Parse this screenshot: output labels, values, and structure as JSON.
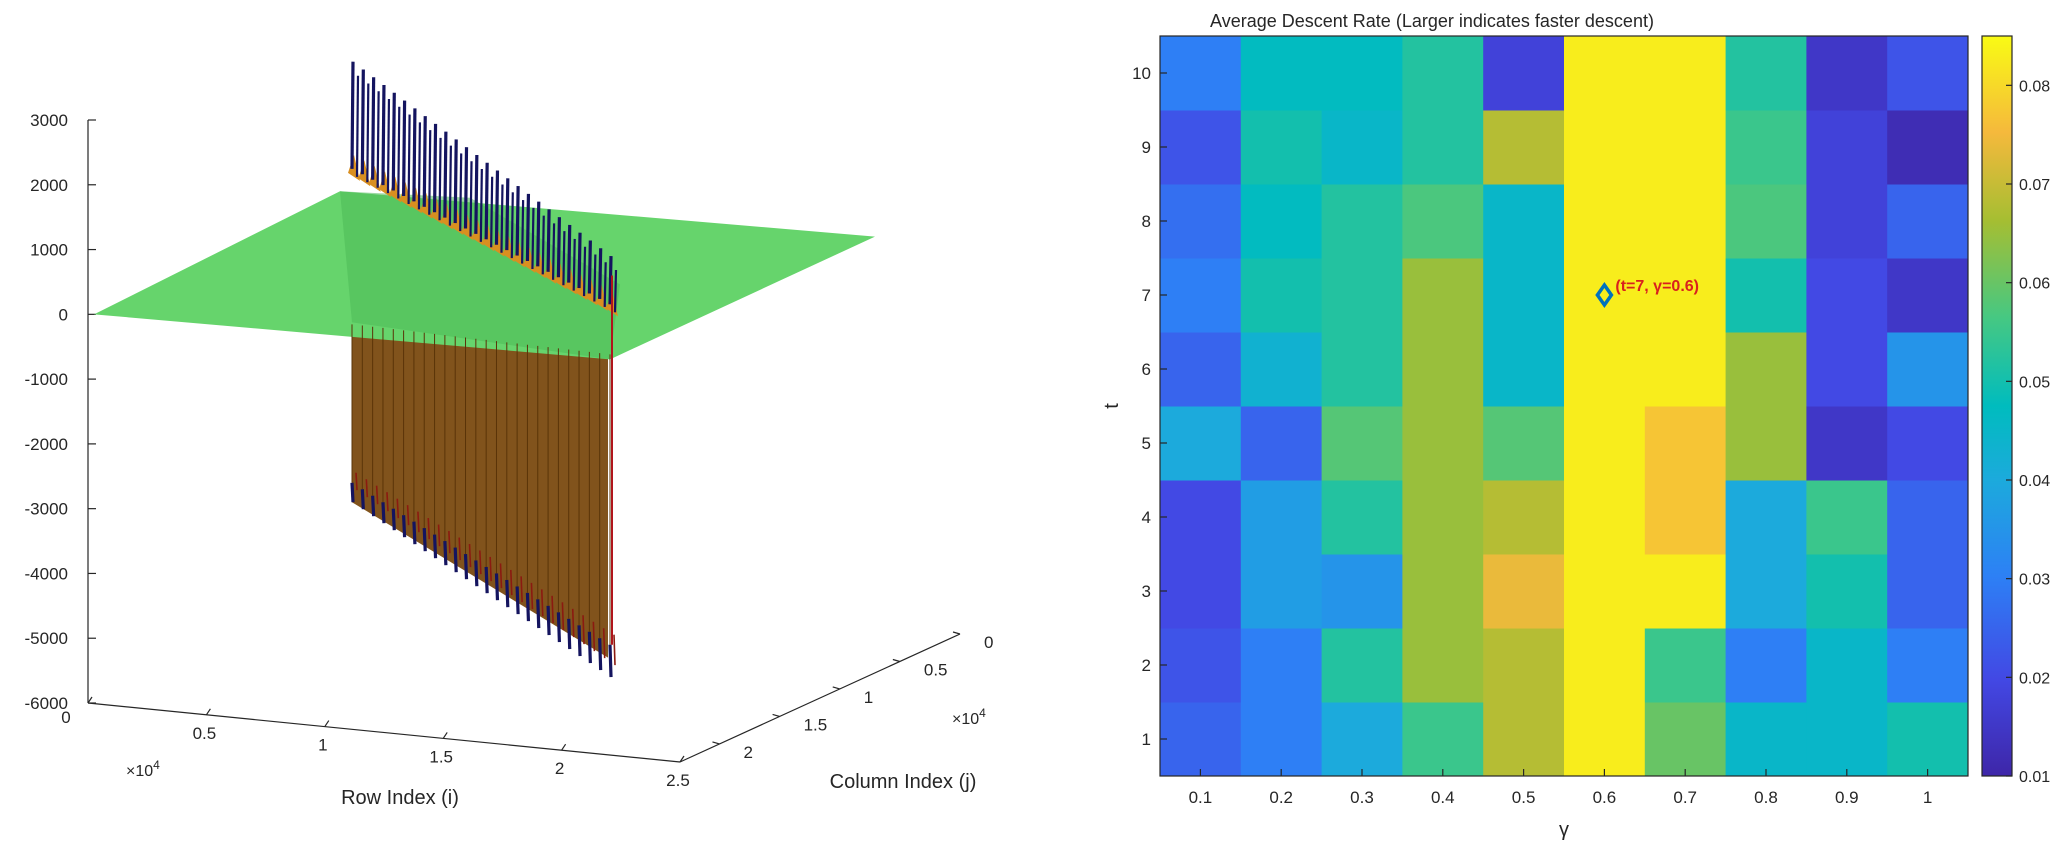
{
  "chart_data": [
    {
      "type": "surface3d",
      "title": "",
      "xlabel": "Row Index (i)",
      "ylabel": "Column Index (j)",
      "zlabel": "",
      "x_exponent": "×10",
      "x_exponent_power": "4",
      "y_exponent": "×10",
      "y_exponent_power": "4",
      "x_ticks": [
        "0",
        "0.5",
        "1",
        "1.5",
        "2",
        "2.5"
      ],
      "y_ticks": [
        "0",
        "0.5",
        "1",
        "1.5",
        "2"
      ],
      "z_ticks": [
        "3000",
        "2000",
        "1000",
        "0",
        "-1000",
        "-2000",
        "-3000",
        "-4000",
        "-5000",
        "-6000"
      ],
      "xlim": [
        0,
        25000
      ],
      "ylim": [
        0,
        22000
      ],
      "zlim": [
        -6000,
        3000
      ],
      "plane_value": 0,
      "spike_count": 26,
      "spike_max": 3900,
      "spike_min": -5600,
      "colors": {
        "plane": "#66d46c",
        "plane_shadow": "#4cba58",
        "wall": "#7a4a10",
        "spike": "#14145f",
        "edge": "#d98f20"
      }
    },
    {
      "type": "heatmap",
      "title": "Average Descent Rate (Larger indicates faster descent)",
      "xlabel": "γ",
      "ylabel": "t",
      "x": [
        "0.1",
        "0.2",
        "0.3",
        "0.4",
        "0.5",
        "0.6",
        "0.7",
        "0.8",
        "0.9",
        "1"
      ],
      "y": [
        "1",
        "2",
        "3",
        "4",
        "5",
        "6",
        "7",
        "8",
        "9",
        "10"
      ],
      "values": [
        [
          0.025,
          0.03,
          0.04,
          0.055,
          0.068,
          0.083,
          0.06,
          0.045,
          0.045,
          0.05
        ],
        [
          0.022,
          0.03,
          0.052,
          0.065,
          0.068,
          0.083,
          0.055,
          0.03,
          0.045,
          0.03
        ],
        [
          0.02,
          0.037,
          0.035,
          0.065,
          0.074,
          0.083,
          0.083,
          0.04,
          0.05,
          0.025
        ],
        [
          0.02,
          0.037,
          0.052,
          0.065,
          0.068,
          0.083,
          0.077,
          0.04,
          0.055,
          0.025
        ],
        [
          0.04,
          0.025,
          0.058,
          0.065,
          0.058,
          0.083,
          0.077,
          0.065,
          0.015,
          0.02
        ],
        [
          0.025,
          0.043,
          0.052,
          0.065,
          0.045,
          0.083,
          0.083,
          0.065,
          0.02,
          0.035
        ],
        [
          0.03,
          0.05,
          0.052,
          0.065,
          0.045,
          0.083,
          0.083,
          0.05,
          0.02,
          0.015
        ],
        [
          0.027,
          0.047,
          0.052,
          0.057,
          0.045,
          0.083,
          0.083,
          0.057,
          0.018,
          0.025
        ],
        [
          0.022,
          0.05,
          0.045,
          0.052,
          0.068,
          0.083,
          0.083,
          0.055,
          0.018,
          0.012
        ],
        [
          0.03,
          0.047,
          0.047,
          0.052,
          0.018,
          0.083,
          0.083,
          0.052,
          0.015,
          0.022
        ]
      ],
      "clim": [
        0.01,
        0.085
      ],
      "colorbar_ticks": [
        "0.01",
        "0.02",
        "0.03",
        "0.04",
        "0.05",
        "0.06",
        "0.07",
        "0.08"
      ],
      "colorbar_tick_values": [
        0.01,
        0.02,
        0.03,
        0.04,
        0.05,
        0.06,
        0.07,
        0.08
      ],
      "colormap": "parula",
      "annotation": {
        "text": "(t=7, γ=0.6)",
        "t": 7,
        "gamma": 0.6,
        "marker": "diamond",
        "marker_color": "#0072bd",
        "text_color": "#d9201e"
      }
    }
  ]
}
